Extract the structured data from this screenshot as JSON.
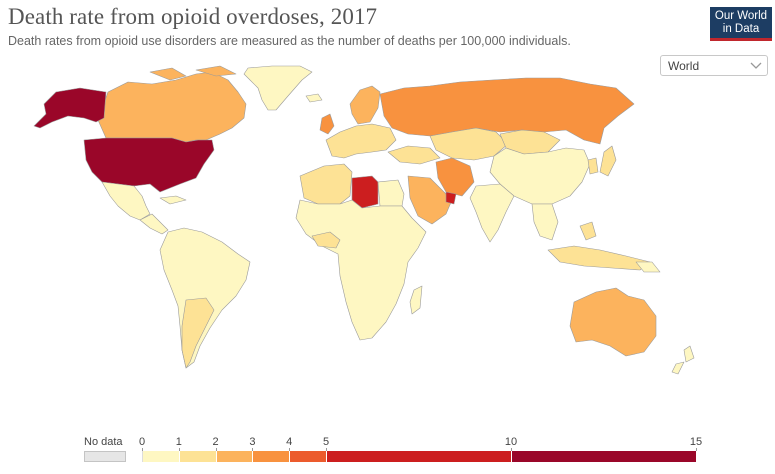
{
  "header": {
    "title": "Death rate from opioid overdoses, 2017",
    "subtitle": "Death rates from opioid use disorders are measured as the number of deaths per 100,000 individuals."
  },
  "logo": {
    "line1": "Our World",
    "line2": "in Data"
  },
  "region_select": {
    "value": "World",
    "icon": "chevron-down-icon"
  },
  "colors": {
    "no_data": "#e6e6e6",
    "bins": [
      "#fef7c2",
      "#fde295",
      "#fcb35d",
      "#f8923f",
      "#ec5b2d",
      "#cc1e1f",
      "#9a0629"
    ],
    "ocean": "#ffffff",
    "border": "#9b9b9b"
  },
  "legend": {
    "no_data_label": "No data",
    "bins": [
      {
        "from": 0,
        "to": 1
      },
      {
        "from": 1,
        "to": 2
      },
      {
        "from": 2,
        "to": 3
      },
      {
        "from": 3,
        "to": 4
      },
      {
        "from": 4,
        "to": 5
      },
      {
        "from": 5,
        "to": 10
      },
      {
        "from": 10,
        "to": 15
      }
    ],
    "ticks": [
      "0",
      "1",
      "2",
      "3",
      "4",
      "5",
      "10",
      "15"
    ]
  },
  "map_regions": [
    {
      "name": "United States",
      "bin": 6
    },
    {
      "name": "Alaska",
      "bin": 6
    },
    {
      "name": "Canada",
      "bin": 2
    },
    {
      "name": "Greenland",
      "bin": 0
    },
    {
      "name": "Russia",
      "bin": 3
    },
    {
      "name": "Scandinavia",
      "bin": 2
    },
    {
      "name": "Libya",
      "bin": 5
    },
    {
      "name": "United Arab Emirates",
      "bin": 5
    },
    {
      "name": "Iran",
      "bin": 3
    },
    {
      "name": "Australia",
      "bin": 2
    },
    {
      "name": "Kazakhstan",
      "bin": 1
    },
    {
      "name": "China",
      "bin": 0
    }
  ]
}
